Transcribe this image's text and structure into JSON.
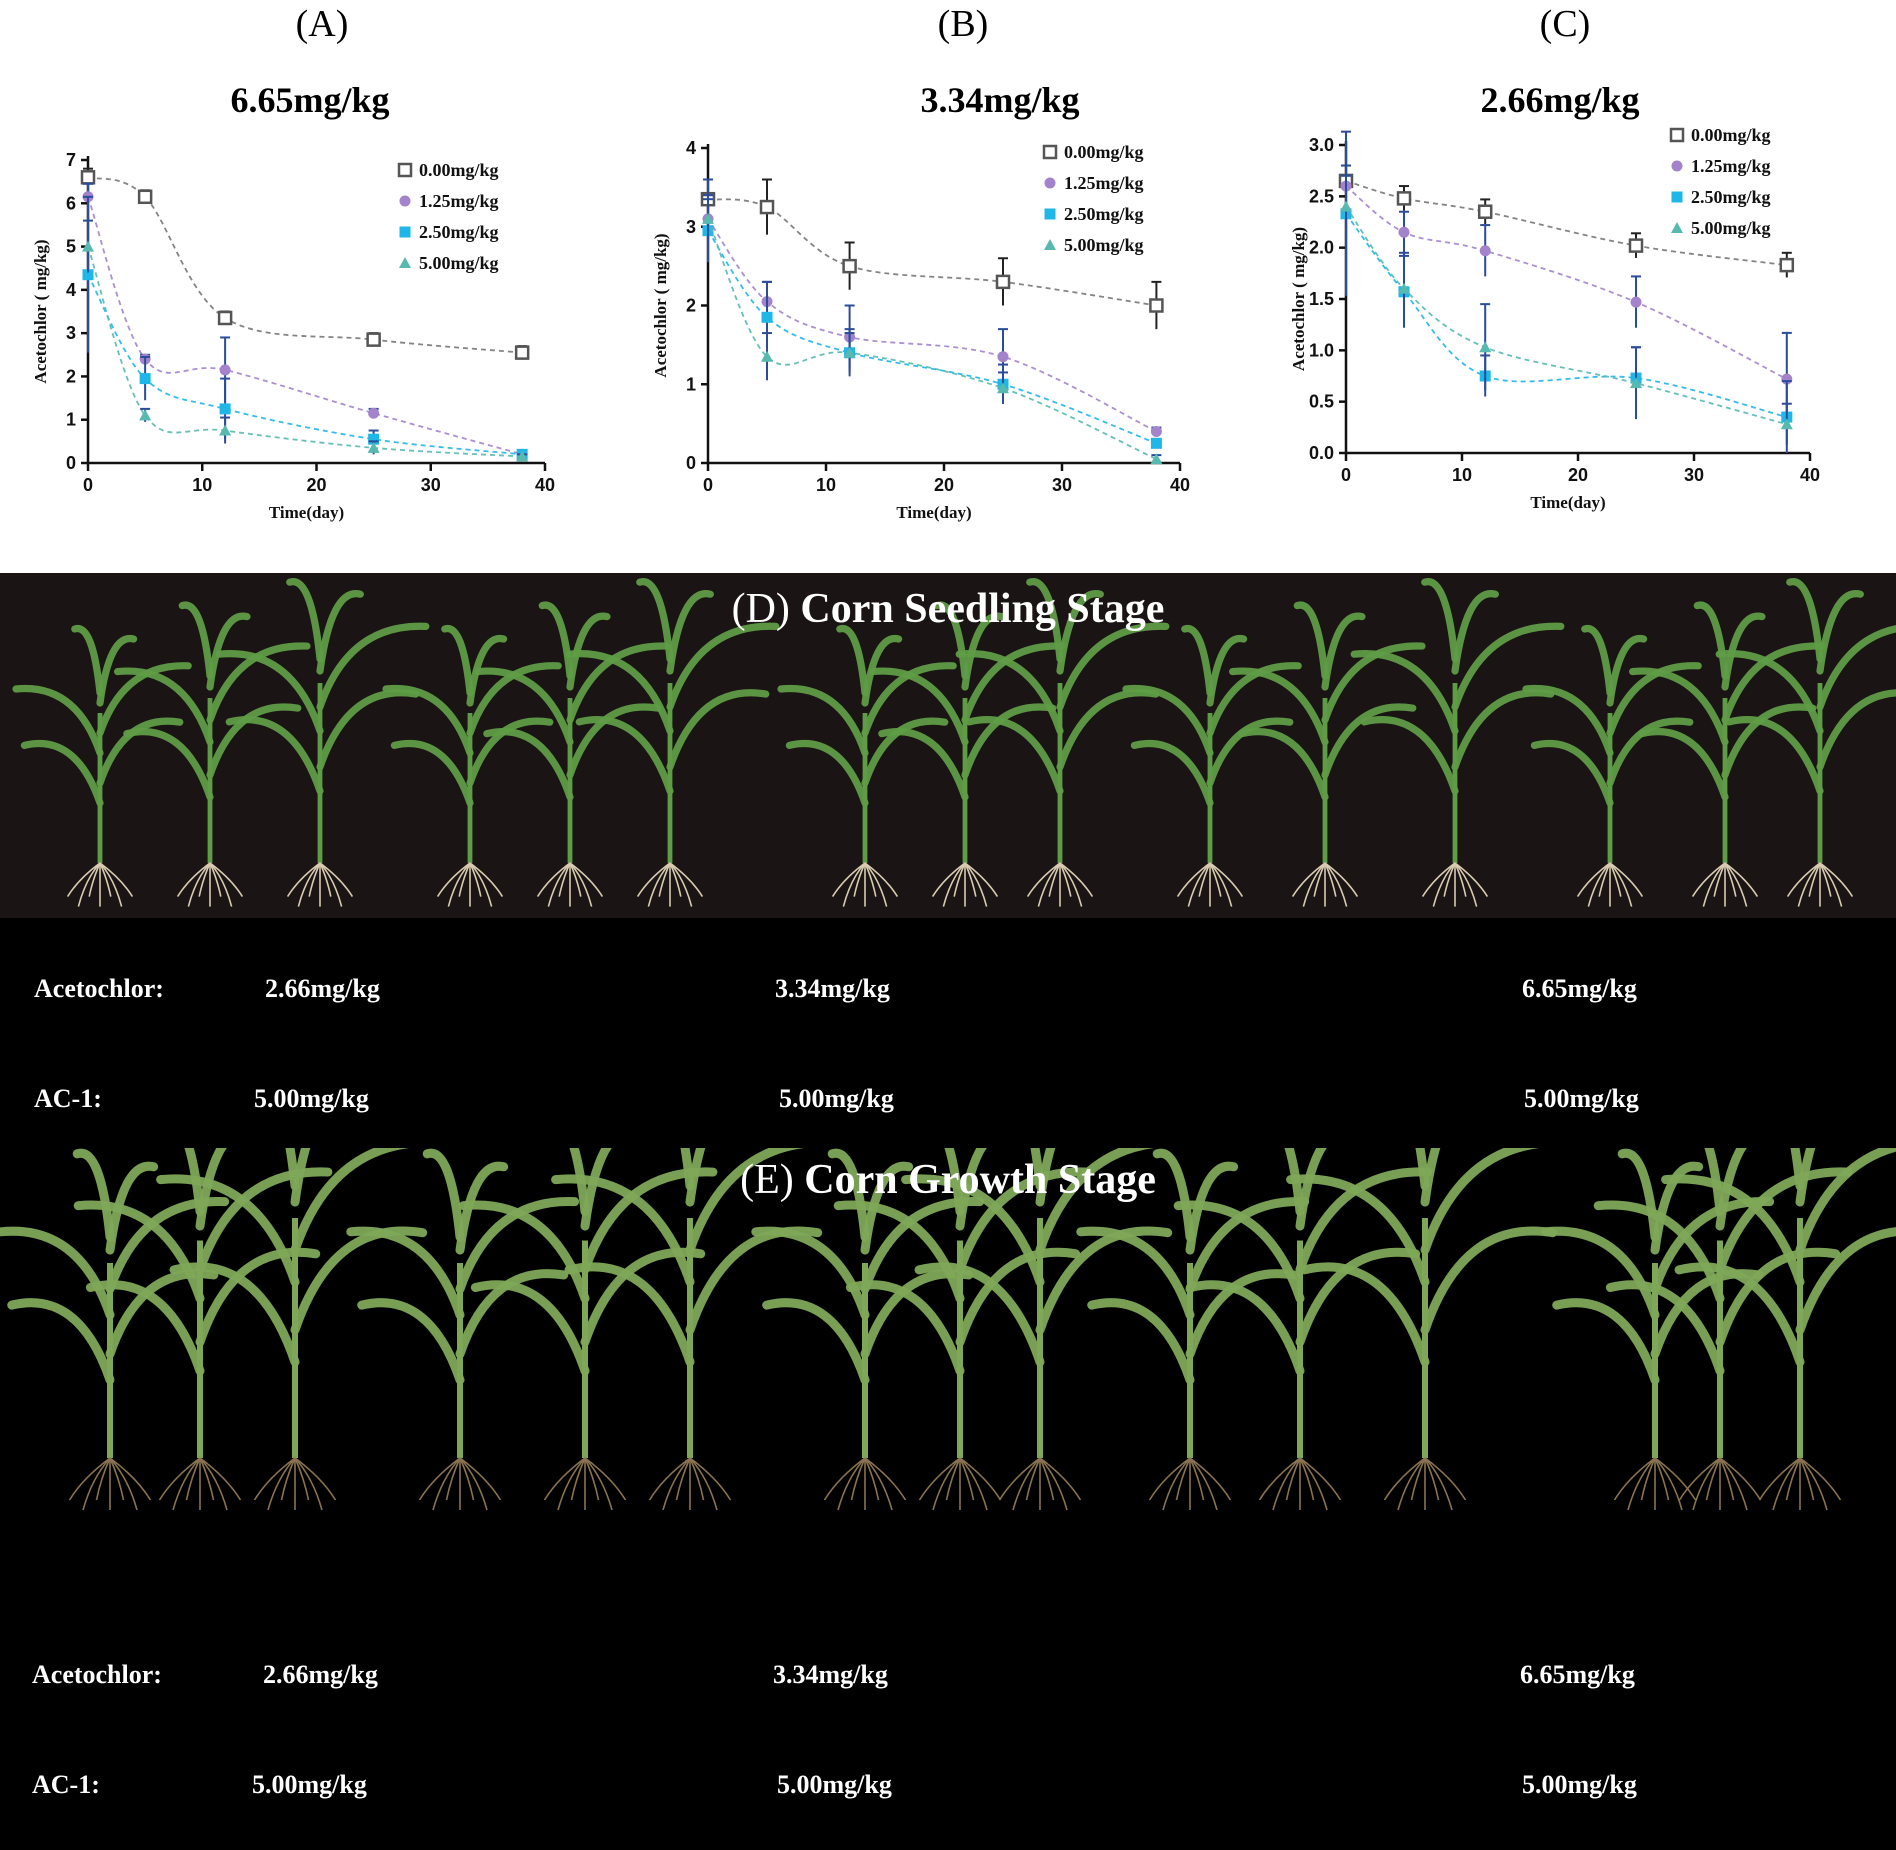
{
  "panels": [
    "(A)",
    "(B)",
    "(C)"
  ],
  "chart_data": [
    {
      "type": "scatter",
      "title": "6.65mg/kg",
      "xlabel": "Time(day)",
      "ylabel": "Acetochlor ( mg/kg)",
      "xlim": [
        0,
        40
      ],
      "ylim": [
        0,
        7
      ],
      "xticks": [
        0,
        10,
        20,
        30,
        40
      ],
      "yticks": [
        0,
        1,
        2,
        3,
        4,
        5,
        6,
        7
      ],
      "legend_position": "top-right",
      "series": [
        {
          "name": "0.00mg/kg",
          "x": [
            0,
            5,
            12,
            25,
            38
          ],
          "y": [
            6.6,
            6.15,
            3.35,
            2.85,
            2.55
          ],
          "err": [
            0.2,
            0.15,
            0.15,
            0.15,
            0.15
          ]
        },
        {
          "name": "1.25mg/kg",
          "x": [
            0,
            5,
            12,
            25,
            38
          ],
          "y": [
            6.15,
            2.4,
            2.15,
            1.15,
            0.2
          ],
          "err": [
            0.3,
            0.1,
            0.75,
            0.1,
            0.05
          ]
        },
        {
          "name": "2.50mg/kg",
          "x": [
            0,
            5,
            12,
            25,
            38
          ],
          "y": [
            4.35,
            1.95,
            1.25,
            0.55,
            0.2
          ],
          "err": [
            1.8,
            0.5,
            0.7,
            0.2,
            0.05
          ]
        },
        {
          "name": "5.00mg/kg",
          "x": [
            0,
            5,
            12,
            25,
            38
          ],
          "y": [
            5.0,
            1.1,
            0.75,
            0.35,
            0.15
          ],
          "err": [
            0.6,
            0.15,
            0.3,
            0.15,
            0.05
          ]
        }
      ]
    },
    {
      "type": "scatter",
      "title": "3.34mg/kg",
      "xlabel": "Time(day)",
      "ylabel": "Acetochlor ( mg/kg)",
      "xlim": [
        0,
        40
      ],
      "ylim": [
        0,
        4
      ],
      "xticks": [
        0,
        10,
        20,
        30,
        40
      ],
      "yticks": [
        0,
        1,
        2,
        3,
        4
      ],
      "legend_position": "top-right",
      "series": [
        {
          "name": "0.00mg/kg",
          "x": [
            0,
            5,
            12,
            25,
            38
          ],
          "y": [
            3.35,
            3.25,
            2.5,
            2.3,
            2.0
          ],
          "err": [
            0.25,
            0.35,
            0.3,
            0.3,
            0.3
          ]
        },
        {
          "name": "1.25mg/kg",
          "x": [
            0,
            5,
            12,
            25,
            38
          ],
          "y": [
            3.1,
            2.05,
            1.6,
            1.35,
            0.4
          ],
          "err": [
            0.3,
            0.25,
            0.4,
            0.35,
            0.05
          ]
        },
        {
          "name": "2.50mg/kg",
          "x": [
            0,
            5,
            12,
            25,
            38
          ],
          "y": [
            2.95,
            1.85,
            1.4,
            1.0,
            0.25
          ],
          "err": [
            0.4,
            0.45,
            0.3,
            0.25,
            0.05
          ]
        },
        {
          "name": "5.00mg/kg",
          "x": [
            0,
            5,
            12,
            25,
            38
          ],
          "y": [
            3.1,
            1.35,
            1.4,
            0.95,
            0.05
          ],
          "err": [
            0.5,
            0.3,
            0.25,
            0.2,
            0.05
          ]
        }
      ]
    },
    {
      "type": "scatter",
      "title": "2.66mg/kg",
      "xlabel": "Time(day)",
      "ylabel": "Acetochlor ( mg/kg)",
      "xlim": [
        0,
        40
      ],
      "ylim": [
        0,
        3.0
      ],
      "xticks": [
        0,
        10,
        20,
        30,
        40
      ],
      "yticks": [
        0.0,
        0.5,
        1.0,
        1.5,
        2.0,
        2.5,
        3.0
      ],
      "legend_position": "top-right",
      "series": [
        {
          "name": "0.00mg/kg",
          "x": [
            0,
            5,
            12,
            25,
            38
          ],
          "y": [
            2.65,
            2.48,
            2.35,
            2.02,
            1.83
          ],
          "err": [
            0.15,
            0.12,
            0.12,
            0.12,
            0.12
          ]
        },
        {
          "name": "1.25mg/kg",
          "x": [
            0,
            5,
            12,
            25,
            38
          ],
          "y": [
            2.6,
            2.15,
            1.97,
            1.47,
            0.72
          ],
          "err": [
            0.2,
            0.2,
            0.25,
            0.25,
            0.45
          ]
        },
        {
          "name": "2.50mg/kg",
          "x": [
            0,
            5,
            12,
            25,
            38
          ],
          "y": [
            2.33,
            1.57,
            0.75,
            0.73,
            0.35
          ],
          "err": [
            0.8,
            0.35,
            0.2,
            0.3,
            0.35
          ]
        },
        {
          "name": "5.00mg/kg",
          "x": [
            0,
            5,
            12,
            25,
            38
          ],
          "y": [
            2.4,
            1.6,
            1.03,
            0.68,
            0.28
          ],
          "err": [
            0.3,
            0.35,
            0.42,
            0.35,
            0.2
          ]
        }
      ]
    }
  ],
  "series_colors": [
    "#555555",
    "#a283cc",
    "#1fb6e8",
    "#57b9b0"
  ],
  "seedling": {
    "label_prefix": "(D)",
    "label_main": "Corn Seedling Stage",
    "acetochlor_label": "Acetochlor:",
    "ac1_label": "AC-1:",
    "acetochlor_values": [
      "2.66mg/kg",
      "3.34mg/kg",
      "6.65mg/kg"
    ],
    "ac1_values": [
      "5.00mg/kg",
      "5.00mg/kg",
      "5.00mg/kg"
    ]
  },
  "growth": {
    "label_prefix": "(E)",
    "label_main": "Corn Growth Stage",
    "acetochlor_label": "Acetochlor:",
    "ac1_label": "AC-1:",
    "acetochlor_values": [
      "2.66mg/kg",
      "3.34mg/kg",
      "6.65mg/kg"
    ],
    "ac1_values": [
      "5.00mg/kg",
      "5.00mg/kg",
      "5.00mg/kg"
    ]
  }
}
